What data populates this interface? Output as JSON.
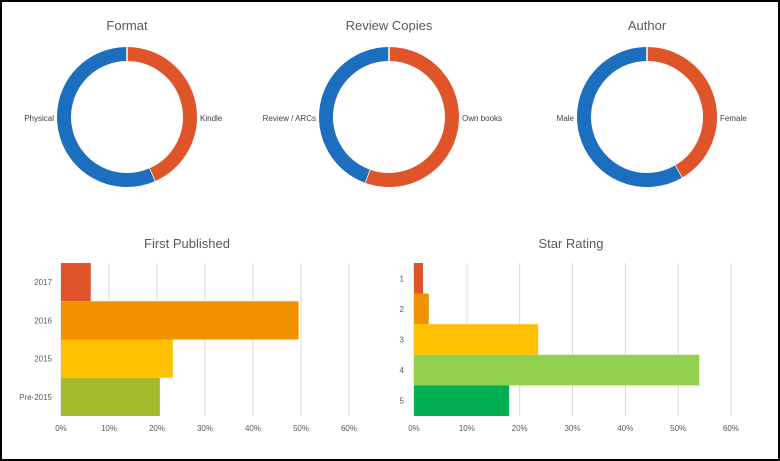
{
  "chart_data": [
    {
      "type": "pie",
      "title": "Format",
      "donut": true,
      "slices": [
        {
          "label": "Kindle",
          "value": 43.5,
          "color": "#E0542A"
        },
        {
          "label": "Physical",
          "value": 56.5,
          "color": "#1C6FBE"
        }
      ]
    },
    {
      "type": "pie",
      "title": "Review Copies",
      "donut": true,
      "slices": [
        {
          "label": "Own books",
          "value": 55.6,
          "color": "#E0542A"
        },
        {
          "label": "Review / ARCs",
          "value": 44.4,
          "color": "#1C6FBE"
        }
      ]
    },
    {
      "type": "pie",
      "title": "Author",
      "donut": true,
      "slices": [
        {
          "label": "Female",
          "value": 41.7,
          "color": "#E0542A"
        },
        {
          "label": "Male",
          "value": 58.3,
          "color": "#1C6FBE"
        }
      ]
    },
    {
      "type": "bar",
      "orientation": "horizontal",
      "title": "First Published",
      "categories": [
        "2017",
        "2016",
        "2015",
        "Pre-2015"
      ],
      "values": [
        6.2,
        49.5,
        23.3,
        20.6
      ],
      "colors": [
        "#E0542A",
        "#F29100",
        "#FFC000",
        "#A5B92D"
      ],
      "xlim": [
        0,
        60
      ],
      "xticks": [
        "0%",
        "10%",
        "20%",
        "30%",
        "40%",
        "50%",
        "60%"
      ],
      "grid": true
    },
    {
      "type": "bar",
      "orientation": "horizontal",
      "title": "Star Rating",
      "categories": [
        "1",
        "2",
        "3",
        "4",
        "5"
      ],
      "values": [
        1.7,
        2.8,
        23.5,
        54,
        18
      ],
      "colors": [
        "#E0542A",
        "#F29100",
        "#FFC000",
        "#92D050",
        "#00B050"
      ],
      "xlim": [
        0,
        60
      ],
      "xticks": [
        "0%",
        "10%",
        "20%",
        "30%",
        "40%",
        "50%",
        "60%"
      ],
      "grid": true
    }
  ]
}
